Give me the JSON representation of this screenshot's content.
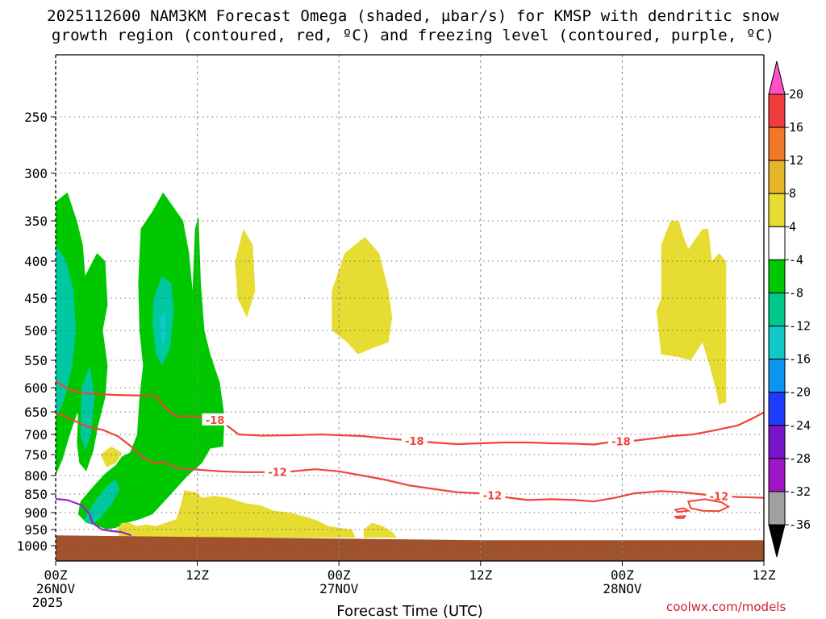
{
  "title": {
    "line1": "2025112600 NAM3KM Forecast Omega (shaded, µbar/s) for KMSP with dendritic snow",
    "line2": "growth region (contoured, red, ºC) and freezing level (contoured, purple, ºC)"
  },
  "credit": "coolwx.com/models",
  "colors": {
    "dgz": "#f0443a",
    "freezing": "#9a1fd0",
    "ground": "#a0522d",
    "green": "#00c800",
    "teal": "#00c8a0",
    "cyan": "#10c8c8",
    "yellow": "#e6dc32"
  },
  "chart_data": {
    "type": "time-height cross-section",
    "xlabel": "Forecast Time (UTC)",
    "xlim": [
      0,
      60
    ],
    "x_ticks": [
      {
        "hour": 0,
        "label": "00Z",
        "sub": "26NOV",
        "sub2": "2025"
      },
      {
        "hour": 12,
        "label": "12Z",
        "sub": "",
        "sub2": ""
      },
      {
        "hour": 24,
        "label": "00Z",
        "sub": "27NOV",
        "sub2": ""
      },
      {
        "hour": 36,
        "label": "12Z",
        "sub": "",
        "sub2": ""
      },
      {
        "hour": 48,
        "label": "00Z",
        "sub": "28NOV",
        "sub2": ""
      },
      {
        "hour": 60,
        "label": "12Z",
        "sub": "",
        "sub2": ""
      }
    ],
    "y_ticks": [
      250,
      300,
      350,
      400,
      450,
      500,
      550,
      600,
      650,
      700,
      750,
      800,
      850,
      900,
      950,
      1000
    ],
    "ylim": [
      200,
      1030
    ],
    "colorbar": {
      "labels": [
        "20",
        "16",
        "12",
        "8",
        "4",
        "-4",
        "-8",
        "-12",
        "-16",
        "-20",
        "-24",
        "-28",
        "-32",
        "-36"
      ],
      "colors": [
        "#ff50c8",
        "#f03c3c",
        "#f07828",
        "#e6b428",
        "#e6dc32",
        "#ffffff",
        "#00c800",
        "#00c88c",
        "#10c8c8",
        "#0a96f0",
        "#1e3cff",
        "#7814c8",
        "#a014c8",
        "#a0a0a0",
        "#000000"
      ]
    },
    "omega_regions": [
      {
        "color": "#00c800",
        "points": [
          [
            0,
            330
          ],
          [
            1,
            320
          ],
          [
            1.8,
            350
          ],
          [
            2.3,
            380
          ],
          [
            2.5,
            420
          ],
          [
            3.5,
            390
          ],
          [
            4.2,
            400
          ],
          [
            4.4,
            460
          ],
          [
            3.8,
            520
          ],
          [
            3.2,
            560
          ],
          [
            2.6,
            600
          ],
          [
            2,
            640
          ],
          [
            1.2,
            700
          ],
          [
            0.6,
            760
          ],
          [
            0,
            800
          ]
        ]
      },
      {
        "color": "#00c800",
        "points": [
          [
            1.5,
            600
          ],
          [
            2.4,
            560
          ],
          [
            3.2,
            520
          ],
          [
            4,
            500
          ],
          [
            4.4,
            560
          ],
          [
            4.2,
            620
          ],
          [
            3.6,
            680
          ],
          [
            3.2,
            740
          ],
          [
            2.6,
            790
          ],
          [
            2,
            770
          ],
          [
            1.8,
            720
          ],
          [
            1.9,
            660
          ]
        ]
      },
      {
        "color": "#00c8a0",
        "points": [
          [
            0,
            380
          ],
          [
            0.9,
            400
          ],
          [
            1.5,
            440
          ],
          [
            1.7,
            500
          ],
          [
            1.4,
            560
          ],
          [
            1,
            600
          ],
          [
            0.5,
            640
          ],
          [
            0,
            660
          ]
        ]
      },
      {
        "color": "#00c8a0",
        "points": [
          [
            2.2,
            600
          ],
          [
            2.9,
            560
          ],
          [
            3.3,
            620
          ],
          [
            3,
            700
          ],
          [
            2.5,
            740
          ],
          [
            2.1,
            700
          ]
        ]
      },
      {
        "color": "#00c800",
        "points": [
          [
            7.2,
            360
          ],
          [
            8.2,
            340
          ],
          [
            9.1,
            320
          ],
          [
            10.8,
            350
          ],
          [
            11.3,
            390
          ],
          [
            11.6,
            440
          ],
          [
            11.8,
            360
          ],
          [
            12.1,
            345
          ],
          [
            12.3,
            430
          ],
          [
            12.6,
            500
          ],
          [
            13.1,
            540
          ],
          [
            13.9,
            590
          ],
          [
            14.3,
            660
          ],
          [
            14.2,
            730
          ],
          [
            13.1,
            735
          ],
          [
            12.4,
            770
          ],
          [
            11.2,
            800
          ],
          [
            10.2,
            835
          ],
          [
            9.2,
            870
          ],
          [
            8.2,
            905
          ],
          [
            7.1,
            920
          ],
          [
            6,
            930
          ],
          [
            5.1,
            945
          ],
          [
            4.3,
            950
          ],
          [
            3.6,
            940
          ],
          [
            2.6,
            930
          ],
          [
            1.9,
            905
          ],
          [
            2.1,
            870
          ],
          [
            2.9,
            840
          ],
          [
            3.6,
            815
          ],
          [
            4.2,
            795
          ],
          [
            5.1,
            775
          ],
          [
            5.6,
            755
          ],
          [
            6.3,
            745
          ],
          [
            6.9,
            700
          ],
          [
            7.1,
            620
          ],
          [
            7.4,
            560
          ],
          [
            7.1,
            500
          ],
          [
            7.0,
            430
          ]
        ]
      },
      {
        "color": "#00c8a0",
        "points": [
          [
            8.3,
            450
          ],
          [
            9,
            420
          ],
          [
            9.8,
            430
          ],
          [
            10,
            470
          ],
          [
            9.7,
            530
          ],
          [
            9,
            560
          ],
          [
            8.5,
            540
          ],
          [
            8.2,
            490
          ]
        ]
      },
      {
        "color": "#10c8c8",
        "points": [
          [
            8.8,
            480
          ],
          [
            9.3,
            470
          ],
          [
            9.4,
            510
          ],
          [
            9.0,
            530
          ]
        ]
      },
      {
        "color": "#00c8a0",
        "points": [
          [
            2.4,
            920
          ],
          [
            3.3,
            870
          ],
          [
            4.3,
            830
          ],
          [
            5.1,
            810
          ],
          [
            5.4,
            840
          ],
          [
            4.7,
            880
          ],
          [
            3.8,
            915
          ],
          [
            3.0,
            935
          ]
        ]
      },
      {
        "color": "#e6dc32",
        "points": [
          [
            3.8,
            750
          ],
          [
            4.7,
            730
          ],
          [
            5.6,
            745
          ],
          [
            5.1,
            770
          ],
          [
            4.3,
            780
          ]
        ]
      },
      {
        "color": "#e6dc32",
        "points": [
          [
            15.2,
            400
          ],
          [
            15.9,
            360
          ],
          [
            16.7,
            380
          ],
          [
            16.9,
            440
          ],
          [
            16.2,
            480
          ],
          [
            15.4,
            450
          ]
        ]
      },
      {
        "color": "#e6dc32",
        "points": [
          [
            23.4,
            440
          ],
          [
            24.5,
            390
          ],
          [
            26.2,
            370
          ],
          [
            27.4,
            390
          ],
          [
            28.2,
            440
          ],
          [
            28.5,
            480
          ],
          [
            28.2,
            520
          ],
          [
            26.8,
            530
          ],
          [
            25.6,
            540
          ],
          [
            24.7,
            520
          ],
          [
            23.4,
            500
          ]
        ]
      },
      {
        "color": "#e6dc32",
        "points": [
          [
            5.2,
            950
          ],
          [
            5.6,
            930
          ],
          [
            6.3,
            930
          ],
          [
            6.8,
            940
          ],
          [
            7.7,
            935
          ],
          [
            8.5,
            940
          ],
          [
            9.3,
            930
          ],
          [
            10.2,
            920
          ],
          [
            10.6,
            880
          ],
          [
            10.9,
            840
          ],
          [
            11.9,
            845
          ],
          [
            12.4,
            860
          ],
          [
            13.4,
            855
          ],
          [
            14.6,
            860
          ],
          [
            16.1,
            875
          ],
          [
            17.3,
            880
          ],
          [
            18.5,
            895
          ],
          [
            19.9,
            900
          ],
          [
            21.4,
            915
          ],
          [
            22.3,
            925
          ],
          [
            23.1,
            940
          ],
          [
            25.1,
            950
          ],
          [
            25.4,
            975
          ],
          [
            23.6,
            975
          ],
          [
            21.6,
            975
          ],
          [
            19.2,
            975
          ],
          [
            16.8,
            975
          ],
          [
            14.3,
            975
          ],
          [
            12.0,
            975
          ],
          [
            10.0,
            975
          ],
          [
            8.5,
            975
          ],
          [
            6.8,
            975
          ],
          [
            5.4,
            975
          ]
        ]
      },
      {
        "color": "#e6dc32",
        "points": [
          [
            26.1,
            950
          ],
          [
            26.8,
            930
          ],
          [
            27.7,
            940
          ],
          [
            28.6,
            960
          ],
          [
            28.9,
            975
          ],
          [
            26.1,
            975
          ]
        ]
      },
      {
        "color": "#e6dc32",
        "points": [
          [
            51.3,
            380
          ],
          [
            52.1,
            350
          ],
          [
            52.8,
            350
          ],
          [
            53.2,
            370
          ],
          [
            53.6,
            385
          ],
          [
            54.8,
            360
          ],
          [
            55.3,
            360
          ],
          [
            55.6,
            400
          ],
          [
            56.2,
            390
          ],
          [
            56.8,
            400
          ],
          [
            56.8,
            630
          ],
          [
            56.2,
            635
          ],
          [
            55.9,
            600
          ],
          [
            55.4,
            560
          ],
          [
            54.8,
            520
          ],
          [
            53.8,
            550
          ],
          [
            52.8,
            545
          ],
          [
            51.3,
            540
          ],
          [
            50.9,
            470
          ],
          [
            51.3,
            450
          ]
        ]
      }
    ],
    "dgz_contours": [
      {
        "label": "-18",
        "points": [
          [
            0,
            588
          ],
          [
            1.2,
            605
          ],
          [
            2.6,
            612
          ],
          [
            5,
            615
          ],
          [
            8.5,
            617
          ],
          [
            9.2,
            640
          ],
          [
            10.2,
            660
          ],
          [
            12,
            660
          ],
          [
            14,
            670
          ],
          [
            15.5,
            700
          ],
          [
            17.5,
            703
          ],
          [
            20,
            702
          ],
          [
            22.5,
            700
          ],
          [
            24,
            702
          ],
          [
            26,
            704
          ],
          [
            28,
            710
          ],
          [
            30,
            715
          ],
          [
            32,
            720
          ],
          [
            34,
            724
          ],
          [
            36,
            722
          ],
          [
            38,
            720
          ],
          [
            40,
            720
          ],
          [
            42,
            722
          ],
          [
            44,
            723
          ],
          [
            45.6,
            725
          ],
          [
            47.2,
            718
          ],
          [
            48.9,
            716
          ],
          [
            50.6,
            710
          ],
          [
            52.2,
            704
          ],
          [
            54,
            700
          ],
          [
            56,
            690
          ],
          [
            57.8,
            680
          ],
          [
            59,
            665
          ],
          [
            60,
            651
          ]
        ]
      },
      {
        "label": "-12",
        "points": [
          [
            0,
            651
          ],
          [
            1.2,
            665
          ],
          [
            2.6,
            682
          ],
          [
            4,
            690
          ],
          [
            5.3,
            705
          ],
          [
            6.4,
            730
          ],
          [
            7.1,
            750
          ],
          [
            7.6,
            760
          ],
          [
            8.3,
            770
          ],
          [
            9.2,
            768
          ],
          [
            10.2,
            782
          ],
          [
            12,
            786
          ],
          [
            14,
            790
          ],
          [
            16,
            792
          ],
          [
            18,
            792
          ],
          [
            20,
            790
          ],
          [
            22,
            785
          ],
          [
            24,
            790
          ],
          [
            26,
            800
          ],
          [
            28,
            812
          ],
          [
            30,
            827
          ],
          [
            32,
            836
          ],
          [
            34,
            845
          ],
          [
            36,
            848
          ],
          [
            38,
            858
          ],
          [
            40,
            866
          ],
          [
            42,
            864
          ],
          [
            44,
            866
          ],
          [
            45.6,
            870
          ],
          [
            47.4,
            860
          ],
          [
            49,
            848
          ],
          [
            51.3,
            842
          ],
          [
            53,
            845
          ],
          [
            54.5,
            850
          ],
          [
            56.5,
            856
          ],
          [
            58,
            858
          ],
          [
            60,
            860
          ]
        ]
      }
    ],
    "freezing_contour": {
      "points": [
        [
          0,
          863
        ],
        [
          1,
          866
        ],
        [
          2.2,
          880
        ],
        [
          2.9,
          905
        ],
        [
          3.1,
          930
        ],
        [
          3.9,
          950
        ],
        [
          4.8,
          955
        ],
        [
          5.6,
          958
        ],
        [
          6.4,
          968
        ]
      ]
    },
    "ground_top_hpa": 968
  }
}
